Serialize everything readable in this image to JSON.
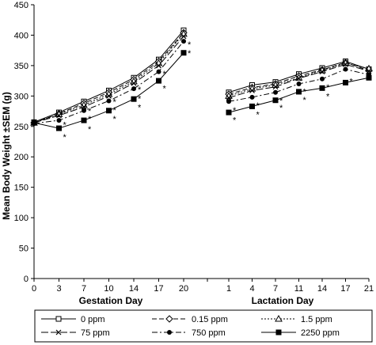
{
  "chart_data": {
    "type": "line",
    "ylabel": "Mean Body Weight ±SEM (g)",
    "ylim": [
      0,
      450
    ],
    "yticks": [
      0,
      50,
      100,
      150,
      200,
      250,
      300,
      350,
      400,
      450
    ],
    "grid": false,
    "legend_position": "bottom",
    "panels": [
      {
        "xlabel": "Gestation Day",
        "x": [
          0,
          3,
          7,
          10,
          14,
          17,
          20
        ],
        "xticks": [
          "0",
          "3",
          "7",
          "10",
          "14",
          "17",
          "20"
        ]
      },
      {
        "xlabel": "Lactation Day",
        "x": [
          1,
          4,
          7,
          11,
          14,
          17,
          21
        ],
        "xticks": [
          "1",
          "4",
          "7",
          "11",
          "14",
          "17",
          "21"
        ]
      }
    ],
    "series": [
      {
        "name": "0 ppm",
        "marker": "open-square",
        "dash": "solid",
        "gestation": [
          257,
          273,
          291,
          309,
          330,
          360,
          408
        ],
        "lactation": [
          306,
          318,
          323,
          336,
          346,
          357,
          344
        ]
      },
      {
        "name": "0.15 ppm",
        "marker": "open-diamond",
        "dash": "dash",
        "gestation": [
          256,
          271,
          288,
          306,
          327,
          357,
          404
        ],
        "lactation": [
          303,
          314,
          320,
          333,
          343,
          355,
          342
        ]
      },
      {
        "name": "1.5 ppm",
        "marker": "open-triangle",
        "dash": "dot",
        "gestation": [
          256,
          270,
          285,
          303,
          324,
          354,
          402
        ],
        "lactation": [
          300,
          312,
          318,
          330,
          342,
          354,
          345
        ]
      },
      {
        "name": "75 ppm",
        "marker": "x",
        "dash": "longdash",
        "gestation": [
          256,
          268,
          282,
          300,
          321,
          350,
          398
        ],
        "lactation": [
          297,
          309,
          315,
          329,
          340,
          352,
          341
        ]
      },
      {
        "name": "750 ppm",
        "marker": "filled-circle",
        "dash": "dashdot",
        "gestation": [
          255,
          260,
          276,
          292,
          312,
          340,
          390
        ],
        "lactation": [
          291,
          298,
          306,
          320,
          328,
          344,
          335
        ]
      },
      {
        "name": "2250 ppm",
        "marker": "filled-square",
        "dash": "solid",
        "gestation": [
          256,
          247,
          260,
          276,
          295,
          325,
          371
        ],
        "lactation": [
          273,
          283,
          293,
          307,
          313,
          322,
          330
        ]
      }
    ],
    "annotations": {
      "text": "*",
      "gestation": [
        {
          "x": 3,
          "y": 258
        },
        {
          "x": 3,
          "y": 238
        },
        {
          "x": 7,
          "y": 281
        },
        {
          "x": 7,
          "y": 268
        },
        {
          "x": 7,
          "y": 251
        },
        {
          "x": 10,
          "y": 296
        },
        {
          "x": 10,
          "y": 282
        },
        {
          "x": 10,
          "y": 268
        },
        {
          "x": 14,
          "y": 316
        },
        {
          "x": 14,
          "y": 301
        },
        {
          "x": 14,
          "y": 287
        },
        {
          "x": 17,
          "y": 342
        },
        {
          "x": 17,
          "y": 318
        },
        {
          "x": 20,
          "y": 390
        },
        {
          "x": 20,
          "y": 376
        }
      ],
      "lactation": [
        {
          "x": 1,
          "y": 282
        },
        {
          "x": 1,
          "y": 266
        },
        {
          "x": 4,
          "y": 290
        },
        {
          "x": 4,
          "y": 275
        },
        {
          "x": 7,
          "y": 298
        },
        {
          "x": 7,
          "y": 286
        },
        {
          "x": 11,
          "y": 313
        },
        {
          "x": 11,
          "y": 299
        },
        {
          "x": 14,
          "y": 320
        },
        {
          "x": 14,
          "y": 305
        },
        {
          "x": 17,
          "y": 330
        }
      ]
    }
  }
}
